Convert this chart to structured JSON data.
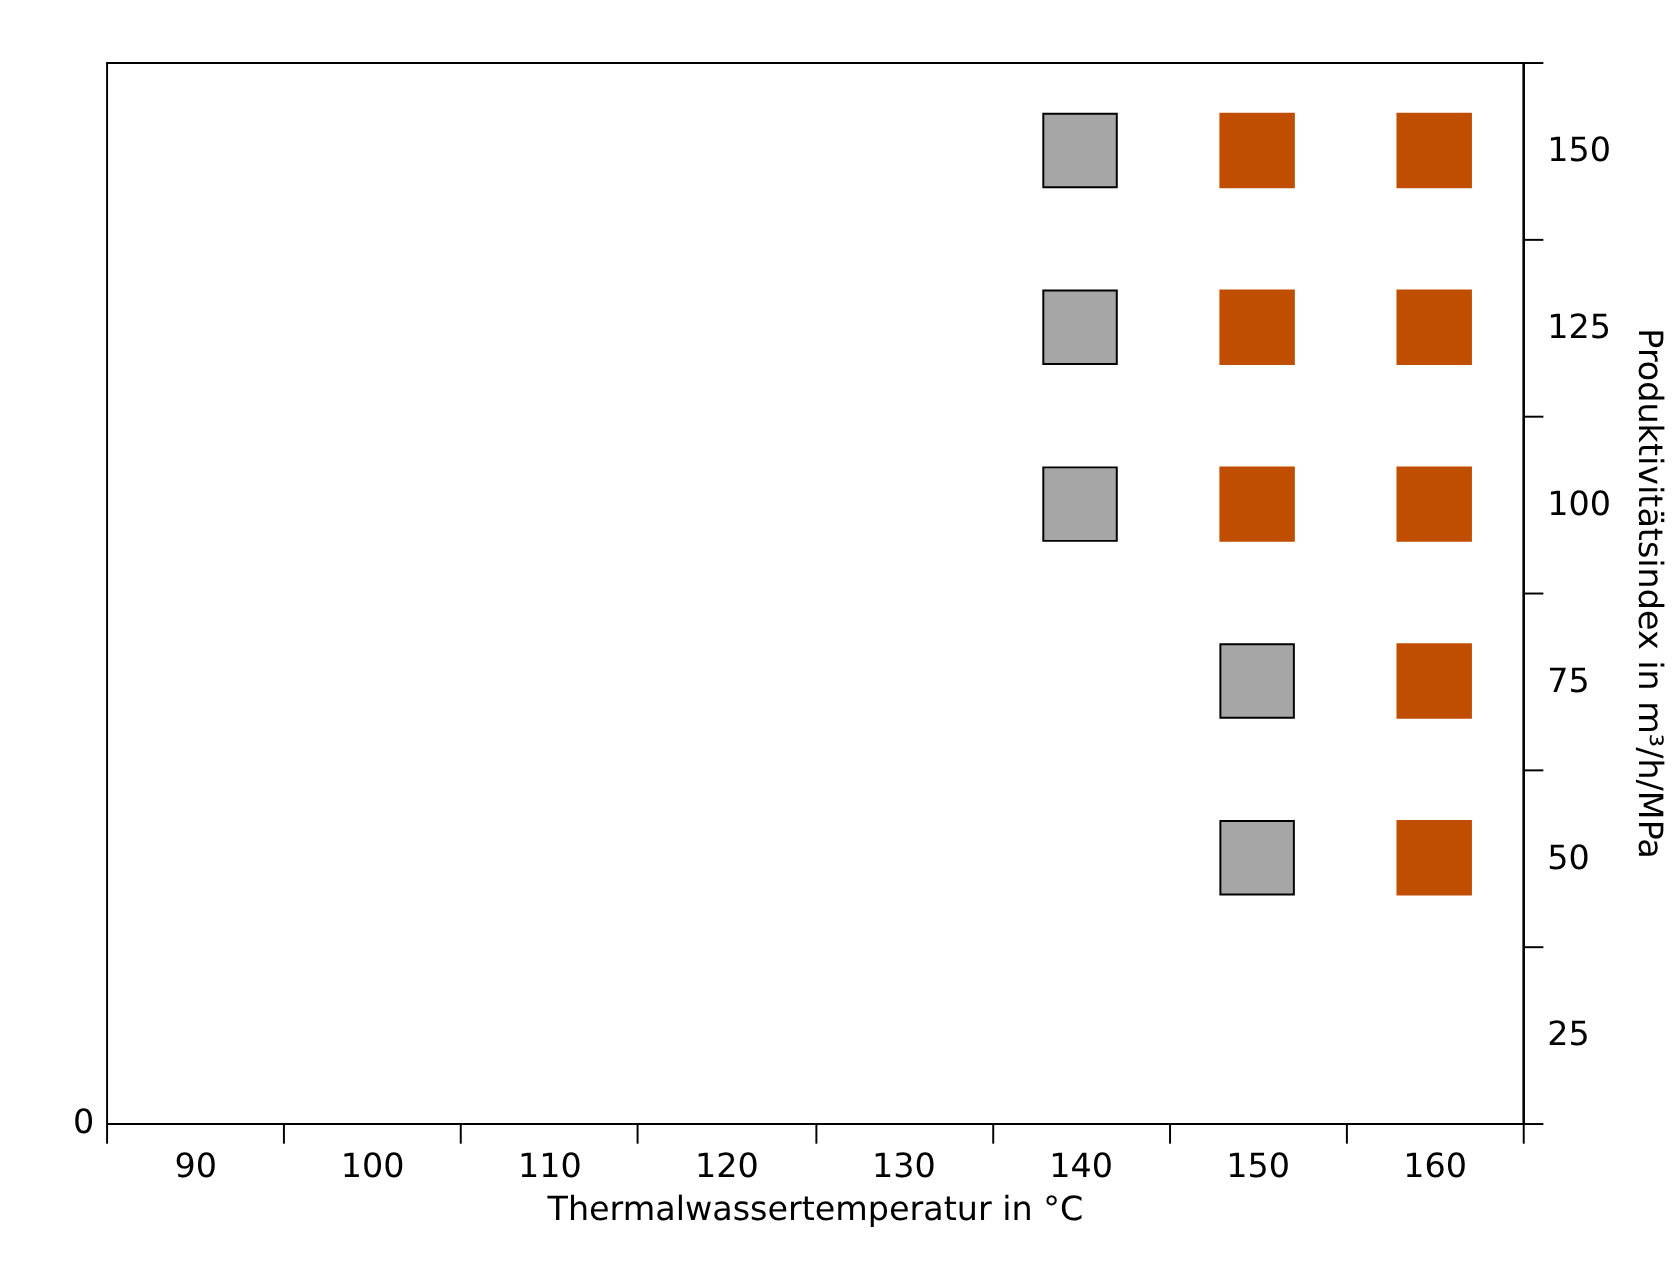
{
  "chart_data": {
    "type": "scatter",
    "xlabel": "Thermalwassertemperatur in °C",
    "ylabel": "Produktivitätsindex in m³/h/MPa",
    "categories": [
      "90",
      "100",
      "110",
      "120",
      "130",
      "140",
      "150",
      "160"
    ],
    "marker": "square",
    "grid": false,
    "ylim": [
      12.5,
      162.5
    ],
    "yticks": [
      25,
      50,
      75,
      100,
      125,
      150,
      {
        "value": 12.5,
        "label": null
      },
      {
        "value": 37.5,
        "label": null
      },
      {
        "value": 62.5,
        "label": null
      },
      {
        "value": 87.5,
        "label": null
      },
      {
        "value": 112.5,
        "label": null
      },
      {
        "value": 137.5,
        "label": null
      },
      {
        "value": 162.5,
        "label": null
      }
    ],
    "series": [
      {
        "color": "#c04e00",
        "x": [
          "150",
          "150",
          "150",
          "160",
          "160",
          "160",
          "160",
          "160"
        ],
        "values": [
          150,
          125,
          100,
          150,
          125,
          100,
          75,
          50
        ]
      },
      {
        "color": "#a6a6a6",
        "x": [
          "140",
          "140",
          "140",
          "150",
          "150"
        ],
        "values": [
          150,
          125,
          100,
          75,
          50
        ]
      }
    ],
    "annotations": [
      "0"
    ]
  }
}
